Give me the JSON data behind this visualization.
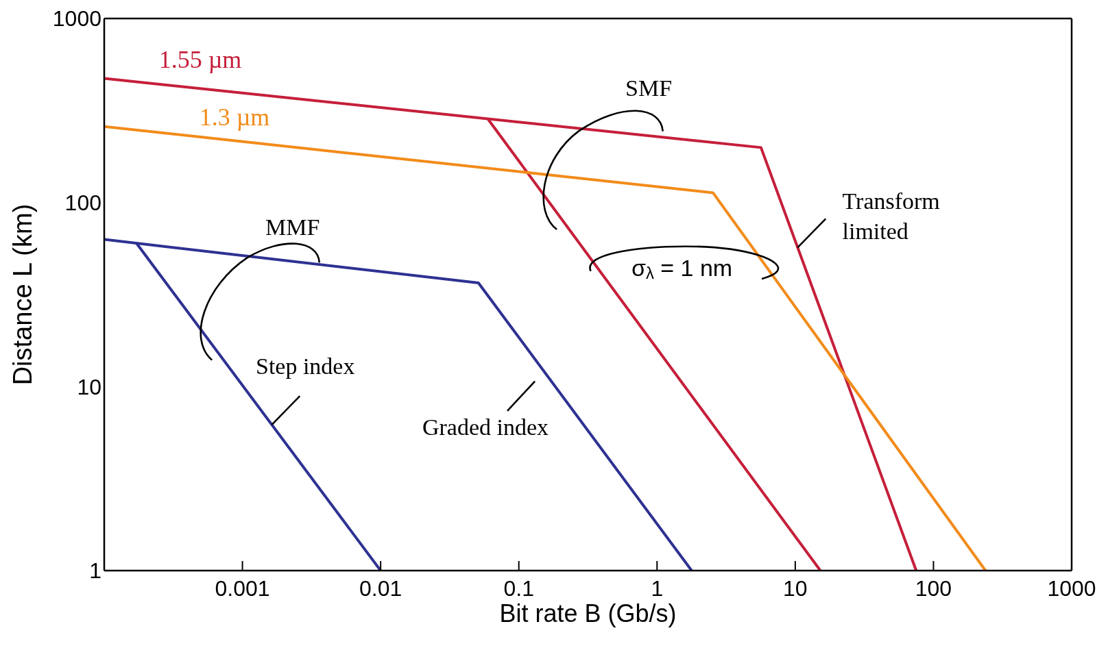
{
  "chart_data": {
    "type": "line",
    "xlabel": "Bit rate B (Gb/s)",
    "ylabel": "Distance L (km)",
    "log": "xy",
    "xlim": [
      0.0001,
      1000
    ],
    "xticks": [
      {
        "value": 0.0001,
        "label": null
      },
      0.001,
      0.01,
      0.1,
      1,
      10,
      100,
      1000
    ],
    "ylim": [
      1,
      1000
    ],
    "yticks": [
      1,
      10,
      100,
      1000
    ],
    "marker": "none",
    "line_style": "solid",
    "series": [
      {
        "name": "1.55 µm",
        "color": "#c51f3a",
        "x": [
          0.0001,
          5.65,
          75
        ],
        "values": [
          472,
          199,
          1
        ]
      },
      {
        "color": "#c51f3a",
        "x": [
          0.06,
          15.2
        ],
        "values": [
          283,
          1
        ]
      },
      {
        "name": "1.3 µm",
        "color": "#f28b1a",
        "x": [
          0.0001,
          2.54,
          238
        ],
        "values": [
          259,
          113,
          1
        ]
      },
      {
        "color": "#2e3192",
        "x": [
          0.0001,
          0.051,
          1.78
        ],
        "values": [
          63,
          36.6,
          1
        ]
      },
      {
        "color": "#2e3192",
        "x": [
          0.00017,
          0.01
        ],
        "values": [
          60.5,
          1
        ]
      }
    ],
    "annotations": [
      "SMF",
      "MMF",
      {
        "text": "Step index",
        "x": 0.00163,
        "y": 6.2
      },
      "Graded index",
      {
        "text": "Transform\nlimited",
        "x": 10.4,
        "y": 57
      },
      "σ$_{λ}$ = 1 nm"
    ]
  }
}
